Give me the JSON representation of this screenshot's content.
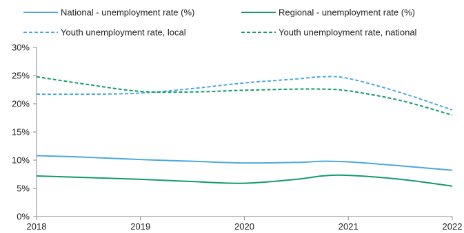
{
  "chart_data": {
    "type": "line",
    "title": "",
    "xlabel": "",
    "ylabel": "",
    "x": [
      2018,
      2018.5,
      2019,
      2019.5,
      2020,
      2020.5,
      2020.75,
      2021,
      2021.5,
      2022
    ],
    "x_ticks": [
      "2018",
      "2019",
      "2020",
      "2021",
      "2022"
    ],
    "x_tick_values": [
      2018,
      2019,
      2020,
      2021,
      2022
    ],
    "xlim": [
      2018,
      2022
    ],
    "ylim": [
      0,
      30
    ],
    "y_ticks": [
      "0%",
      "5%",
      "10%",
      "15%",
      "20%",
      "25%",
      "30%"
    ],
    "y_tick_values": [
      0,
      5,
      10,
      15,
      20,
      25,
      30
    ],
    "grid": false,
    "legend_position": "top",
    "series": [
      {
        "name": "National - unemployment rate (%)",
        "color": "#4ba8df",
        "dash": "solid",
        "values": [
          10.8,
          10.5,
          10.1,
          9.8,
          9.5,
          9.6,
          9.8,
          9.7,
          9.0,
          8.2
        ]
      },
      {
        "name": "Regional - unemployment rate (%)",
        "color": "#139a6d",
        "dash": "solid",
        "values": [
          7.2,
          6.9,
          6.6,
          6.2,
          5.9,
          6.6,
          7.2,
          7.3,
          6.6,
          5.4
        ]
      },
      {
        "name": "Youth unemployment rate, local",
        "color": "#4ba8df",
        "dash": "dashed",
        "values": [
          21.7,
          21.7,
          21.9,
          22.7,
          23.7,
          24.4,
          24.8,
          24.5,
          22.0,
          18.9
        ]
      },
      {
        "name": "Youth unemployment rate, national",
        "color": "#139a6d",
        "dash": "dashed",
        "values": [
          24.8,
          23.4,
          22.2,
          22.1,
          22.4,
          22.6,
          22.6,
          22.3,
          20.6,
          18.0
        ]
      }
    ]
  }
}
